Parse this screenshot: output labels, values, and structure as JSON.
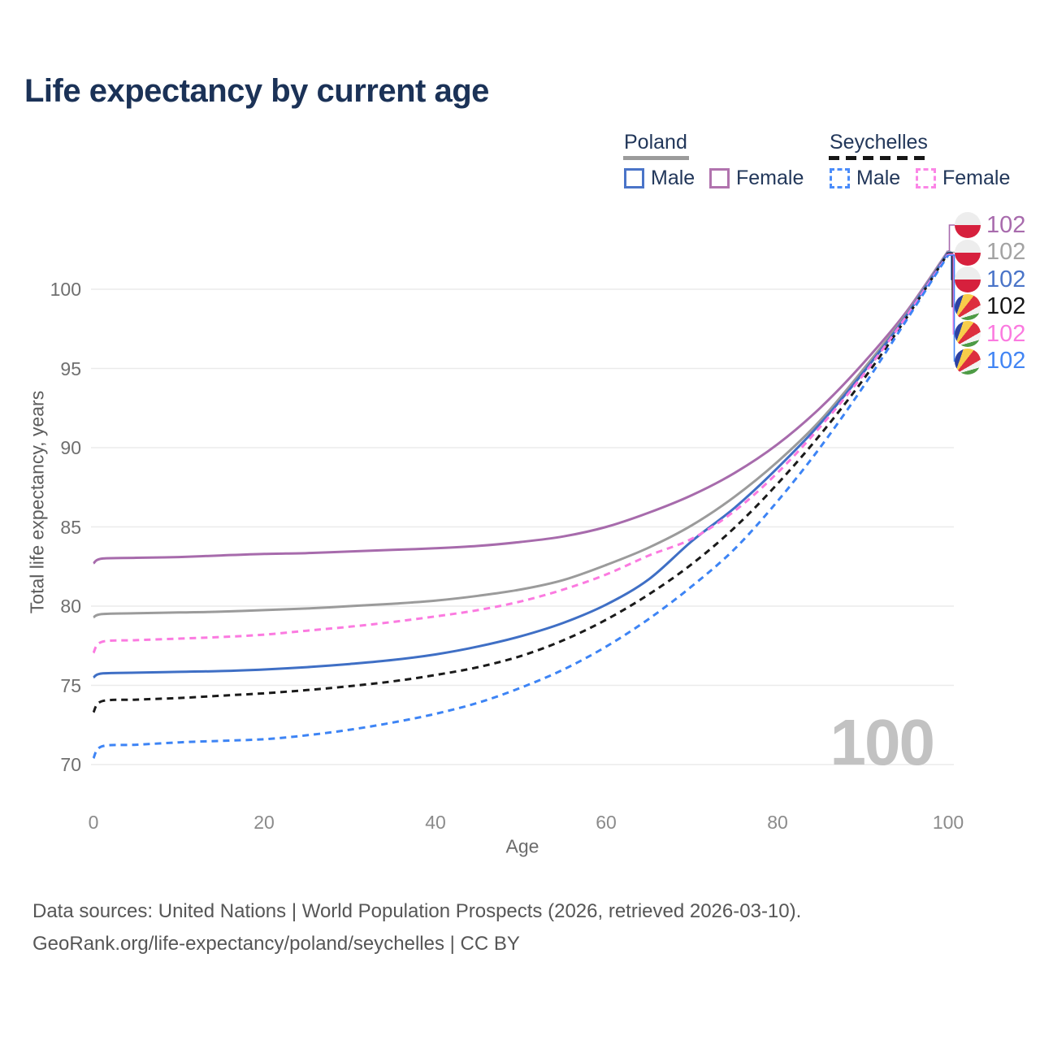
{
  "title": "Life expectancy by current age",
  "legend": {
    "groups": [
      {
        "label": "Poland",
        "line_style": "solid",
        "swatch_color": "#9b9b9b",
        "items": [
          {
            "label": "Male",
            "color": "#4a74c8",
            "dashed": false
          },
          {
            "label": "Female",
            "color": "#b173ae",
            "dashed": false
          }
        ]
      },
      {
        "label": "Seychelles",
        "line_style": "dashed",
        "swatch_color": "#161616",
        "items": [
          {
            "label": "Male",
            "color": "#4a8cfa",
            "dashed": true
          },
          {
            "label": "Female",
            "color": "#fb86e6",
            "dashed": true
          }
        ]
      }
    ]
  },
  "watermark": {
    "text": "100"
  },
  "end_labels": [
    {
      "value": "102",
      "flag": "poland",
      "series": "Poland Female",
      "color": "#a86bad"
    },
    {
      "value": "102",
      "flag": "poland",
      "series": "Poland Both sexes",
      "color": "#a3a3a3"
    },
    {
      "value": "102",
      "flag": "poland",
      "series": "Poland Male",
      "color": "#4a74c8"
    },
    {
      "value": "102",
      "flag": "seychelles",
      "series": "Seychelles Both sexes",
      "color": "#161616"
    },
    {
      "value": "102",
      "flag": "seychelles",
      "series": "Seychelles Female",
      "color": "#fb7ae0"
    },
    {
      "value": "102",
      "flag": "seychelles",
      "series": "Seychelles Male",
      "color": "#4285f4"
    }
  ],
  "footer": {
    "line1": "Data sources: United Nations | World Population Prospects (2026, retrieved 2026-03-10).",
    "line2": "GeoRank.org/life-expectancy/poland/seychelles | CC BY"
  },
  "chart_data": {
    "type": "line",
    "title": "Life expectancy by current age",
    "xlabel": "Age",
    "ylabel": "Total life expectancy, years",
    "xlim": [
      0,
      100
    ],
    "ylim": [
      69.5,
      103
    ],
    "xticks": [
      0,
      20,
      40,
      60,
      80,
      100
    ],
    "yticks": [
      70,
      75,
      80,
      85,
      90,
      95,
      100
    ],
    "grid": "horizontal",
    "legend_position": "top-right",
    "x": [
      0,
      1,
      5,
      10,
      15,
      20,
      25,
      30,
      35,
      40,
      45,
      50,
      55,
      60,
      65,
      70,
      75,
      80,
      85,
      90,
      95,
      100
    ],
    "series": [
      {
        "name": "Poland Female",
        "country": "Poland",
        "sex": "Female",
        "color": "#a76bac",
        "dashed": false,
        "values": [
          82.7,
          83.0,
          83.05,
          83.1,
          83.2,
          83.3,
          83.35,
          83.45,
          83.55,
          83.65,
          83.8,
          84.05,
          84.4,
          85.0,
          85.9,
          87.0,
          88.4,
          90.2,
          92.5,
          95.3,
          98.5,
          102.42
        ]
      },
      {
        "name": "Poland Both sexes",
        "country": "Poland",
        "sex": "Both",
        "color": "#9b9b9b",
        "dashed": false,
        "values": [
          79.3,
          79.5,
          79.55,
          79.6,
          79.65,
          79.75,
          79.85,
          80.0,
          80.15,
          80.35,
          80.65,
          81.05,
          81.65,
          82.6,
          83.7,
          85.1,
          86.9,
          89.1,
          91.7,
          94.9,
          98.35,
          102.38
        ]
      },
      {
        "name": "Poland Male",
        "country": "Poland",
        "sex": "Male",
        "color": "#3f6fc5",
        "dashed": false,
        "values": [
          75.5,
          75.75,
          75.8,
          75.85,
          75.9,
          76.0,
          76.15,
          76.35,
          76.6,
          76.95,
          77.45,
          78.1,
          78.95,
          80.1,
          81.7,
          84.1,
          86.2,
          88.7,
          91.5,
          94.7,
          98.25,
          102.33
        ]
      },
      {
        "name": "Seychelles Both sexes",
        "country": "Seychelles",
        "sex": "Both",
        "color": "#1a1a1a",
        "dashed": true,
        "values": [
          73.3,
          74.0,
          74.1,
          74.2,
          74.35,
          74.5,
          74.7,
          74.95,
          75.25,
          75.65,
          76.15,
          76.85,
          77.85,
          79.15,
          80.75,
          82.65,
          84.95,
          87.7,
          90.8,
          94.25,
          98.1,
          102.28
        ]
      },
      {
        "name": "Seychelles Female",
        "country": "Seychelles",
        "sex": "Female",
        "color": "#fb7ae0",
        "dashed": true,
        "values": [
          77.05,
          77.75,
          77.85,
          77.95,
          78.05,
          78.2,
          78.45,
          78.7,
          79.0,
          79.35,
          79.75,
          80.3,
          81.05,
          82.0,
          83.2,
          84.25,
          86.0,
          88.4,
          91.3,
          94.55,
          98.2,
          102.22
        ]
      },
      {
        "name": "Seychelles Male",
        "country": "Seychelles",
        "sex": "Male",
        "color": "#3d84f5",
        "dashed": true,
        "values": [
          70.4,
          71.15,
          71.25,
          71.4,
          71.5,
          71.6,
          71.85,
          72.2,
          72.65,
          73.2,
          73.9,
          74.85,
          76.0,
          77.45,
          79.2,
          81.25,
          83.6,
          86.6,
          90.0,
          93.8,
          97.95,
          102.15
        ]
      }
    ]
  }
}
